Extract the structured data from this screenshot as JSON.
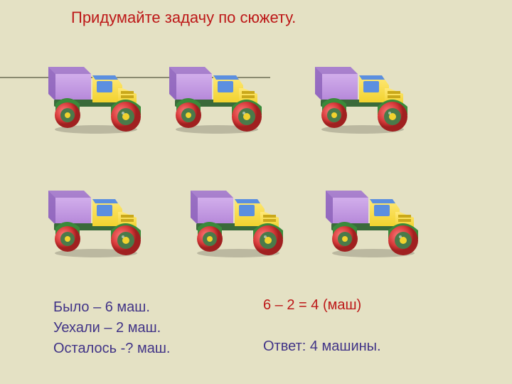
{
  "title": "Придумайте задачу по сюжету.",
  "problem": {
    "line1": "Было – 6 маш.",
    "line2": "Уехали – 2 маш.",
    "line3": "Осталось -? маш."
  },
  "calculation": "6 – 2 = 4 (маш)",
  "answer": "Ответ: 4 машины.",
  "truck": {
    "cabin_color": "#f2d22e",
    "cabin_top": "#5b8fe0",
    "cargo_color": "#b587d9",
    "cargo_shadow": "#8a5fb8",
    "wheel_outer": "#d63939",
    "wheel_inner": "#4a7a4a",
    "hub": "#f2d22e",
    "fender": "#3a8a3a",
    "chassis": "#3a6a3a"
  }
}
